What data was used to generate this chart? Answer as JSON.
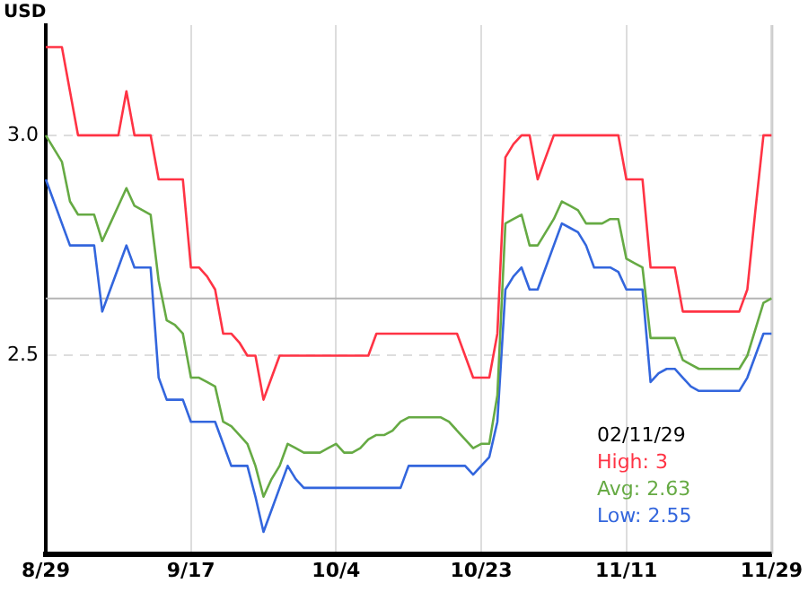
{
  "chart_data": {
    "type": "line",
    "ylabel": "USD",
    "categories": [
      "8/29",
      null,
      null,
      null,
      null,
      null,
      null,
      null,
      null,
      null,
      null,
      null,
      null,
      null,
      null,
      null,
      null,
      null,
      "9/17",
      null,
      null,
      null,
      null,
      null,
      null,
      null,
      null,
      null,
      null,
      null,
      null,
      null,
      null,
      null,
      null,
      null,
      "10/4",
      null,
      null,
      null,
      null,
      null,
      null,
      null,
      null,
      null,
      null,
      null,
      null,
      null,
      null,
      null,
      null,
      null,
      "10/23",
      null,
      null,
      null,
      null,
      null,
      null,
      null,
      null,
      null,
      null,
      null,
      null,
      null,
      null,
      null,
      null,
      null,
      "11/11",
      null,
      null,
      null,
      null,
      null,
      null,
      null,
      null,
      null,
      null,
      null,
      null,
      null,
      null,
      null,
      null,
      null,
      "11/29"
    ],
    "ylim": [
      2.05,
      3.25
    ],
    "yticks": [
      2.5,
      {
        "value": 3,
        "label": "3.0"
      }
    ],
    "grid": true,
    "legend": false,
    "marker": "none",
    "line_style": "solid",
    "ref_lines": [
      {
        "axis": "y",
        "value": 2.63,
        "color": "#b4b4b4"
      }
    ],
    "series": [
      {
        "color": "#ff3344",
        "values": [
          3.2,
          3.2,
          3.2,
          3.1,
          3.0,
          3.0,
          3.0,
          3.0,
          3.0,
          3.0,
          3.1,
          3.0,
          3.0,
          3.0,
          2.9,
          2.9,
          2.9,
          2.9,
          2.7,
          2.7,
          2.68,
          2.65,
          2.55,
          2.55,
          2.53,
          2.5,
          2.5,
          2.4,
          2.45,
          2.5,
          2.5,
          2.5,
          2.5,
          2.5,
          2.5,
          2.5,
          2.5,
          2.5,
          2.5,
          2.5,
          2.5,
          2.55,
          2.55,
          2.55,
          2.55,
          2.55,
          2.55,
          2.55,
          2.55,
          2.55,
          2.55,
          2.55,
          2.5,
          2.45,
          2.45,
          2.45,
          2.55,
          2.95,
          2.98,
          3.0,
          3.0,
          2.9,
          2.95,
          3.0,
          3.0,
          3.0,
          3.0,
          3.0,
          3.0,
          3.0,
          3.0,
          3.0,
          2.9,
          2.9,
          2.9,
          2.7,
          2.7,
          2.7,
          2.7,
          2.6,
          2.6,
          2.6,
          2.6,
          2.6,
          2.6,
          2.6,
          2.6,
          2.65,
          2.83,
          3.0,
          3.0
        ]
      },
      {
        "color": "#66aa44",
        "values": [
          3.0,
          2.97,
          2.94,
          2.85,
          2.82,
          2.82,
          2.82,
          2.76,
          2.8,
          2.84,
          2.88,
          2.84,
          2.83,
          2.82,
          2.67,
          2.58,
          2.57,
          2.55,
          2.45,
          2.45,
          2.44,
          2.43,
          2.35,
          2.34,
          2.32,
          2.3,
          2.25,
          2.18,
          2.22,
          2.25,
          2.3,
          2.29,
          2.28,
          2.28,
          2.28,
          2.29,
          2.3,
          2.28,
          2.28,
          2.29,
          2.31,
          2.32,
          2.32,
          2.33,
          2.35,
          2.36,
          2.36,
          2.36,
          2.36,
          2.36,
          2.35,
          2.33,
          2.31,
          2.29,
          2.3,
          2.3,
          2.41,
          2.8,
          2.81,
          2.82,
          2.75,
          2.75,
          2.78,
          2.81,
          2.85,
          2.84,
          2.83,
          2.8,
          2.8,
          2.8,
          2.81,
          2.81,
          2.72,
          2.71,
          2.7,
          2.54,
          2.54,
          2.54,
          2.54,
          2.49,
          2.48,
          2.47,
          2.47,
          2.47,
          2.47,
          2.47,
          2.47,
          2.5,
          2.56,
          2.62,
          2.63
        ]
      },
      {
        "color": "#3366dd",
        "values": [
          2.9,
          2.85,
          2.8,
          2.75,
          2.75,
          2.75,
          2.75,
          2.6,
          2.65,
          2.7,
          2.75,
          2.7,
          2.7,
          2.7,
          2.45,
          2.4,
          2.4,
          2.4,
          2.35,
          2.35,
          2.35,
          2.35,
          2.3,
          2.25,
          2.25,
          2.25,
          2.18,
          2.1,
          2.15,
          2.2,
          2.25,
          2.22,
          2.2,
          2.2,
          2.2,
          2.2,
          2.2,
          2.2,
          2.2,
          2.2,
          2.2,
          2.2,
          2.2,
          2.2,
          2.2,
          2.25,
          2.25,
          2.25,
          2.25,
          2.25,
          2.25,
          2.25,
          2.25,
          2.23,
          2.25,
          2.27,
          2.35,
          2.65,
          2.68,
          2.7,
          2.65,
          2.65,
          2.7,
          2.75,
          2.8,
          2.79,
          2.78,
          2.75,
          2.7,
          2.7,
          2.7,
          2.69,
          2.65,
          2.65,
          2.65,
          2.44,
          2.46,
          2.47,
          2.47,
          2.45,
          2.43,
          2.42,
          2.42,
          2.42,
          2.42,
          2.42,
          2.42,
          2.45,
          2.5,
          2.55,
          2.55
        ]
      }
    ],
    "annotations": [
      "02/11/29",
      "High: 3",
      "Avg: 2.63",
      "Low: 2.55"
    ]
  }
}
